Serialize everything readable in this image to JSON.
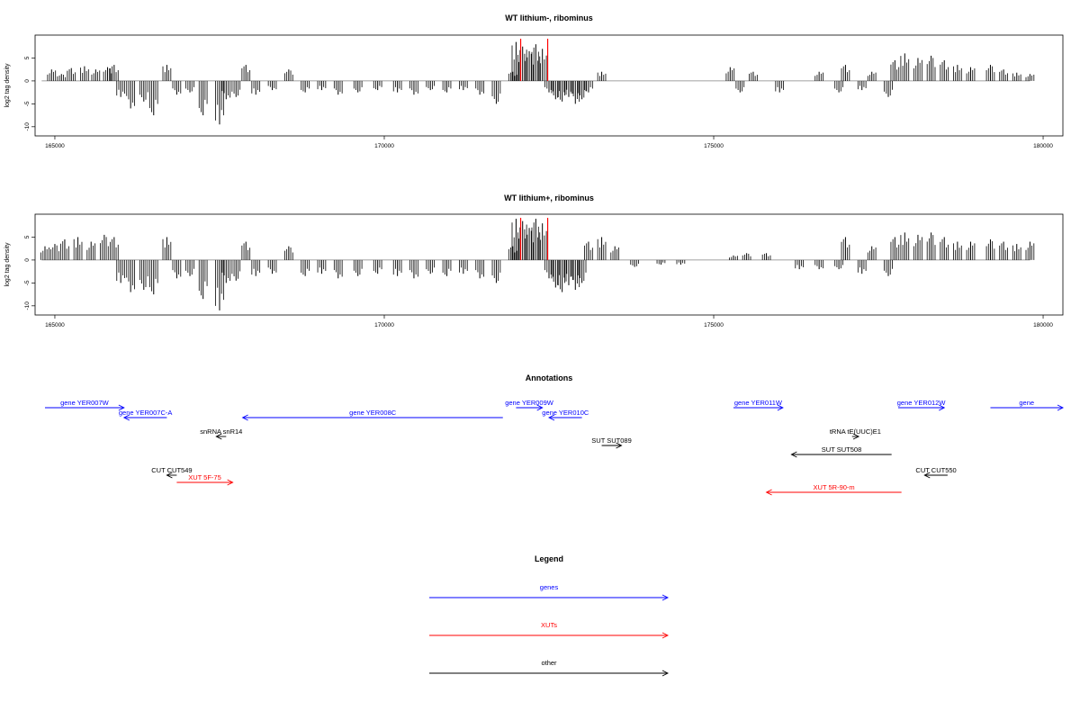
{
  "chart_data": [
    {
      "type": "bar",
      "title": "WT lithium-, ribominus",
      "ylabel": "log2 tag density",
      "xlim": [
        164700,
        180300
      ],
      "ylim": [
        -12,
        10
      ],
      "xticks": [
        165000,
        170000,
        175000,
        180000
      ],
      "yticks": [
        -10,
        -5,
        0,
        5
      ],
      "baseline_range": [
        164800,
        179800
      ],
      "highlight_color": "#ff0000",
      "highlight_x": [
        172070,
        172480
      ],
      "x": [
        164950,
        165100,
        165250,
        165450,
        165620,
        165800,
        165900,
        166000,
        166150,
        166350,
        166500,
        166700,
        166850,
        167050,
        167250,
        167500,
        167600,
        167750,
        167900,
        168050,
        168300,
        168550,
        168800,
        169050,
        169300,
        169600,
        169900,
        170200,
        170450,
        170700,
        170950,
        171200,
        171450,
        171700,
        171950,
        172000,
        172100,
        172200,
        172300,
        172400,
        172500,
        172600,
        172700,
        172800,
        172900,
        173000,
        173100,
        173300,
        175250,
        175400,
        175600,
        176000,
        176600,
        176900,
        177000,
        177250,
        177400,
        177650,
        177750,
        177900,
        178100,
        178300,
        178500,
        178700,
        178900,
        179200,
        179400,
        179600,
        179800
      ],
      "values": [
        2.5,
        1.5,
        2.8,
        3.2,
        2.5,
        3.0,
        3.5,
        -3.5,
        -6.0,
        -4.5,
        -7.5,
        3.5,
        -3.0,
        -2.5,
        -7.5,
        -9.5,
        -4.0,
        -3.5,
        3.5,
        -3.0,
        -2.0,
        2.5,
        -2.5,
        -2.0,
        -3.0,
        -2.5,
        -2.0,
        -2.5,
        -3.0,
        -2.0,
        -2.5,
        -2.0,
        -3.0,
        -5.0,
        2.0,
        8.5,
        7.5,
        6.5,
        8.0,
        7.0,
        -2.5,
        -4.0,
        -4.5,
        -3.5,
        -5.0,
        -4.0,
        -2.5,
        2.0,
        3.0,
        -2.5,
        2.0,
        -2.5,
        2.0,
        -2.5,
        3.5,
        -2.0,
        2.0,
        -3.5,
        4.5,
        6.0,
        5.0,
        5.5,
        4.5,
        3.5,
        3.0,
        3.5,
        2.5,
        1.8,
        1.5
      ]
    },
    {
      "type": "bar",
      "title": "WT lithium+, ribominus",
      "ylabel": "log2 tag density",
      "xlim": [
        164700,
        180300
      ],
      "ylim": [
        -12,
        10
      ],
      "xticks": [
        165000,
        170000,
        175000,
        180000
      ],
      "yticks": [
        -10,
        -5,
        0,
        5
      ],
      "baseline_range": [
        164800,
        179800
      ],
      "highlight_color": "#ff0000",
      "highlight_x": [
        172070,
        172480
      ],
      "x": [
        164850,
        165000,
        165150,
        165350,
        165550,
        165750,
        165900,
        166000,
        166150,
        166350,
        166500,
        166700,
        166850,
        167050,
        167250,
        167500,
        167600,
        167750,
        167900,
        168050,
        168300,
        168550,
        168800,
        169050,
        169300,
        169600,
        169900,
        170200,
        170450,
        170700,
        170950,
        171200,
        171450,
        171700,
        171950,
        172000,
        172100,
        172200,
        172300,
        172400,
        172500,
        172600,
        172700,
        172800,
        172900,
        173000,
        173100,
        173300,
        173500,
        173800,
        174200,
        174500,
        175300,
        175500,
        175800,
        176300,
        176600,
        176900,
        177000,
        177250,
        177400,
        177650,
        177750,
        177900,
        178100,
        178300,
        178500,
        178700,
        178900,
        179200,
        179400,
        179600,
        179800
      ],
      "values": [
        3.0,
        3.5,
        4.5,
        5.0,
        4.0,
        5.5,
        5.0,
        -5.0,
        -7.0,
        -6.5,
        -7.5,
        5.0,
        -4.0,
        -3.5,
        -8.5,
        -11.0,
        -5.0,
        -4.5,
        4.0,
        -3.5,
        -3.0,
        3.0,
        -3.5,
        -3.0,
        -4.0,
        -3.5,
        -3.0,
        -3.5,
        -4.0,
        -3.0,
        -3.5,
        -3.0,
        -4.0,
        -5.0,
        3.0,
        9.0,
        8.5,
        7.0,
        9.0,
        8.0,
        -4.0,
        -6.0,
        -7.0,
        -5.5,
        -6.5,
        -5.0,
        4.0,
        5.0,
        3.0,
        -1.5,
        -1.0,
        -1.0,
        1.0,
        1.5,
        1.5,
        -2.0,
        -2.0,
        -2.0,
        5.0,
        -3.0,
        3.0,
        -3.5,
        5.0,
        6.0,
        5.5,
        6.0,
        5.0,
        4.0,
        4.0,
        4.5,
        4.0,
        3.5,
        4.0
      ]
    }
  ],
  "annotations": {
    "title": "Annotations",
    "xlim": [
      164700,
      180300
    ],
    "colors": {
      "gene": "#0000ff",
      "xut": "#ff0000",
      "other": "#000000"
    },
    "features": [
      {
        "label": "gene YER007W",
        "kind": "gene",
        "start": 164850,
        "end": 166050,
        "strand": "+",
        "row": 0
      },
      {
        "label": "gene YER007C-A",
        "kind": "gene",
        "start": 166050,
        "end": 166700,
        "strand": "-",
        "row": 1
      },
      {
        "label": "gene YER008C",
        "kind": "gene",
        "start": 167850,
        "end": 171800,
        "strand": "-",
        "row": 1
      },
      {
        "label": "gene YER009W",
        "kind": "gene",
        "start": 172000,
        "end": 172400,
        "strand": "+",
        "row": 0
      },
      {
        "label": "gene YER010C",
        "kind": "gene",
        "start": 172500,
        "end": 173000,
        "strand": "-",
        "row": 1
      },
      {
        "label": "gene YER011W",
        "kind": "gene",
        "start": 175300,
        "end": 176050,
        "strand": "+",
        "row": 0
      },
      {
        "label": "gene YER012W",
        "kind": "gene",
        "start": 177800,
        "end": 178500,
        "strand": "+",
        "row": 0
      },
      {
        "label": "gene",
        "kind": "gene",
        "start": 179200,
        "end": 180300,
        "strand": "+",
        "row": 0
      },
      {
        "label": "snRNA snR14",
        "kind": "other",
        "start": 167450,
        "end": 167600,
        "strand": "-",
        "row": 2
      },
      {
        "label": "tRNA tE(UUC)E1",
        "kind": "other",
        "start": 177100,
        "end": 177200,
        "strand": "+",
        "row": 2
      },
      {
        "label": "SUT SUT089",
        "kind": "other",
        "start": 173300,
        "end": 173600,
        "strand": "+",
        "row": 3
      },
      {
        "label": "SUT SUT508",
        "kind": "other",
        "start": 176180,
        "end": 177700,
        "strand": "-",
        "row": 4
      },
      {
        "label": "CUT CUT549",
        "kind": "other",
        "start": 166700,
        "end": 166850,
        "strand": "-",
        "row": 5
      },
      {
        "label": "CUT CUT550",
        "kind": "other",
        "start": 178200,
        "end": 178550,
        "strand": "-",
        "row": 5
      },
      {
        "label": "XUT 5F-75",
        "kind": "xut",
        "start": 166850,
        "end": 167700,
        "strand": "+",
        "row": 6
      },
      {
        "label": "XUT 5R-90-m",
        "kind": "xut",
        "start": 175800,
        "end": 177850,
        "strand": "-",
        "row": 7
      }
    ]
  },
  "legend": {
    "title": "Legend",
    "items": [
      {
        "label": "genes",
        "color": "#0000ff"
      },
      {
        "label": "XUTs",
        "color": "#ff0000"
      },
      {
        "label": "other",
        "color": "#000000"
      }
    ]
  }
}
